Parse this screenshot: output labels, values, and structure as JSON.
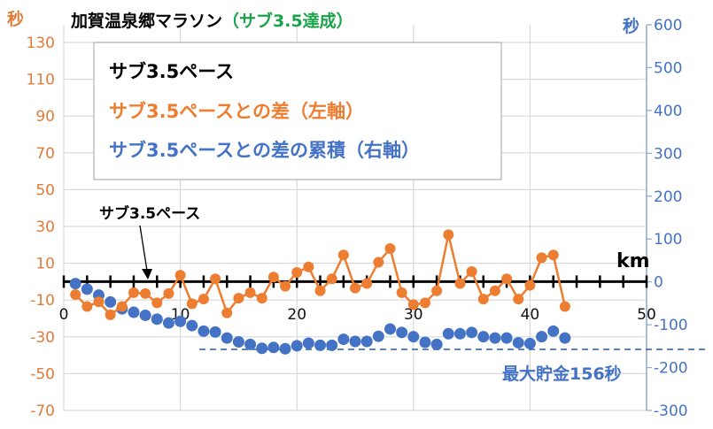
{
  "chart_data": {
    "type": "line",
    "title": "加賀温泉郷マラソン",
    "title_suffix": "（サブ3.5達成）",
    "colors": {
      "title_suffix": "#1AA34A",
      "pace": "#000000",
      "diff": "#ED7D31",
      "cumulative": "#4472C4",
      "dashed": "#2E5C9A"
    },
    "xlabel": "km",
    "ylabel_left": "秒",
    "ylabel_right": "秒",
    "xlim": [
      0,
      50
    ],
    "ylim_left": [
      -70,
      130
    ],
    "ylim_right": [
      -300,
      600
    ],
    "x_ticks": [
      "0",
      "10",
      "20",
      "30",
      "40",
      "50"
    ],
    "y_left_ticks": [
      "130",
      "110",
      "90",
      "70",
      "50",
      "30",
      "10",
      "-10",
      "-30",
      "-50",
      "-70"
    ],
    "y_right_ticks": [
      "600",
      "500",
      "400",
      "300",
      "200",
      "100",
      "0",
      "-100",
      "-200",
      "-300"
    ],
    "grid": true,
    "legend": {
      "placement": "top-left",
      "entries": [
        "サブ3.5ペース",
        "サブ3.5ペースとの差（左軸）",
        "サブ3.5ペースとの差の累積（右軸）"
      ]
    },
    "annotations": {
      "pace_label": "サブ3.5ペース",
      "max_savings": "最大貯金156秒",
      "max_savings_value": -156
    },
    "x": [
      1,
      2,
      3,
      4,
      5,
      6,
      7,
      8,
      9,
      10,
      11,
      12,
      13,
      14,
      15,
      16,
      17,
      18,
      19,
      20,
      21,
      22,
      23,
      24,
      25,
      26,
      27,
      28,
      29,
      30,
      31,
      32,
      33,
      34,
      35,
      36,
      37,
      38,
      39,
      40,
      41,
      42,
      43
    ],
    "series": [
      {
        "name": "サブ3.5ペースとの差（左軸）",
        "axis": "left",
        "values": [
          -7,
          -13.5,
          -11,
          -18,
          -13.5,
          -6,
          -6.5,
          -11.5,
          -6.5,
          3.5,
          -12,
          -9.5,
          1.5,
          -17,
          -9,
          -6,
          -9,
          2.5,
          -2.5,
          5,
          8,
          -5,
          1.5,
          14.5,
          -3.5,
          -1,
          10.5,
          18,
          -6,
          -12.5,
          -11.5,
          -5,
          25.5,
          -1,
          5.5,
          -9.5,
          -5,
          1.5,
          -9.5,
          -2,
          13,
          14.5,
          -13.5
        ]
      },
      {
        "name": "サブ3.5ペースとの差の累積（右軸）",
        "axis": "right",
        "values": [
          -4,
          -17,
          -31,
          -47,
          -63,
          -71,
          -78,
          -87,
          -96,
          -92,
          -102,
          -115,
          -117,
          -131,
          -140,
          -146,
          -155,
          -153,
          -156,
          -149,
          -143,
          -148,
          -148,
          -134,
          -139,
          -139,
          -127,
          -110,
          -118,
          -128,
          -141,
          -146,
          -121,
          -121,
          -118,
          -128,
          -131,
          -131,
          -142,
          -144,
          -128,
          -115,
          -131
        ]
      }
    ]
  }
}
